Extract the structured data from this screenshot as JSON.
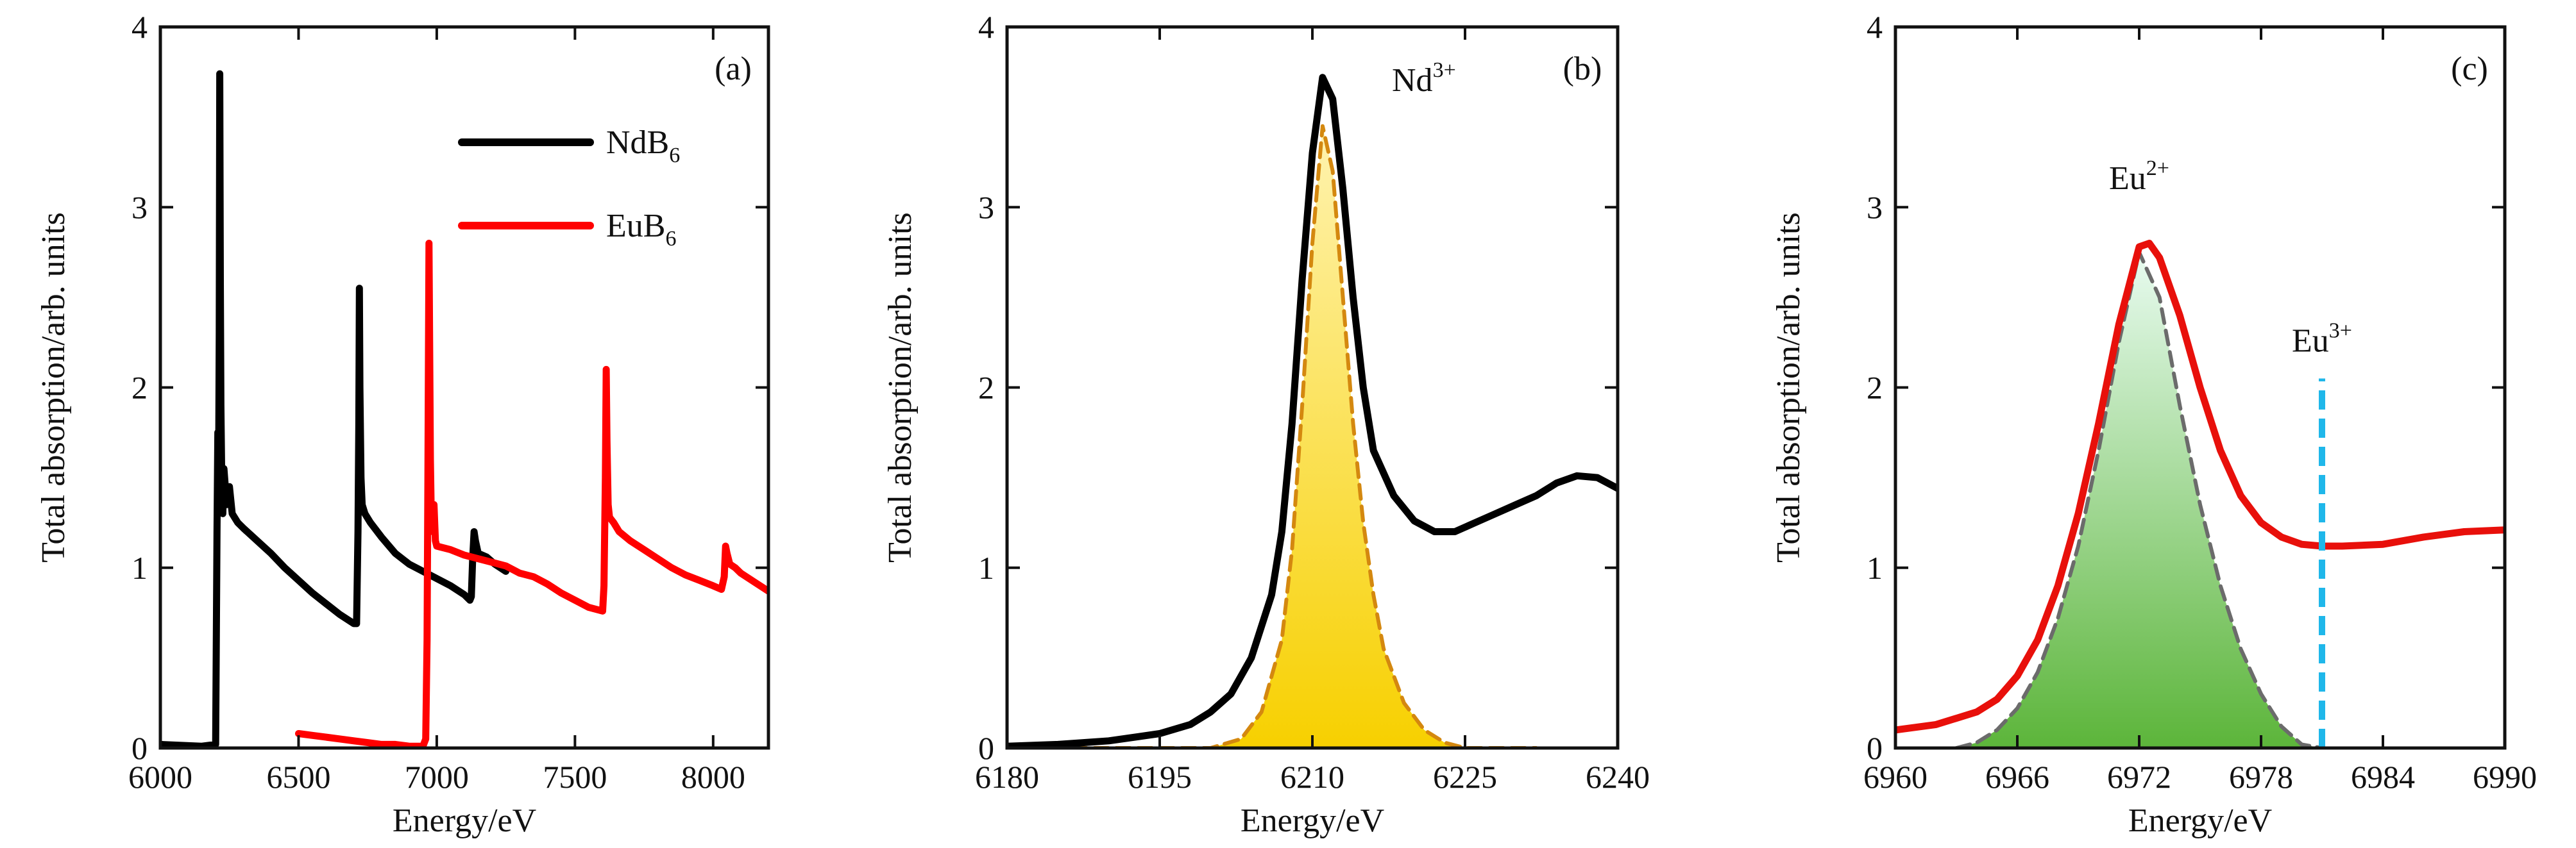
{
  "chart_data": [
    {
      "type": "line",
      "panel_label": "(a)",
      "xlabel": "Energy/eV",
      "ylabel": "Total absorption/arb. units",
      "xlim": [
        6000,
        8200
      ],
      "ylim": [
        0,
        4
      ],
      "xticks": [
        6000,
        6500,
        7000,
        7500,
        8000
      ],
      "yticks": [
        0,
        1,
        2,
        3,
        4
      ],
      "legend": {
        "placement": "top-right",
        "entries": [
          {
            "name_main": "NdB",
            "name_sub": "6",
            "color": "#000000"
          },
          {
            "name_main": "EuB",
            "name_sub": "6",
            "color": "#ff0000"
          }
        ]
      },
      "series": [
        {
          "name": "NdB6",
          "color": "#000000",
          "points": [
            [
              6000,
              0.02
            ],
            [
              6150,
              0.01
            ],
            [
              6200,
              0.02
            ],
            [
              6205,
              1.2
            ],
            [
              6208,
              1.75
            ],
            [
              6210,
              1.3
            ],
            [
              6213,
              2.3
            ],
            [
              6215,
              3.74
            ],
            [
              6217,
              2.6
            ],
            [
              6219,
              1.9
            ],
            [
              6222,
              1.5
            ],
            [
              6226,
              1.3
            ],
            [
              6230,
              1.55
            ],
            [
              6240,
              1.35
            ],
            [
              6250,
              1.45
            ],
            [
              6260,
              1.3
            ],
            [
              6280,
              1.25
            ],
            [
              6300,
              1.22
            ],
            [
              6350,
              1.15
            ],
            [
              6400,
              1.08
            ],
            [
              6450,
              1.0
            ],
            [
              6500,
              0.93
            ],
            [
              6550,
              0.86
            ],
            [
              6600,
              0.8
            ],
            [
              6650,
              0.74
            ],
            [
              6700,
              0.69
            ],
            [
              6710,
              0.69
            ],
            [
              6715,
              1.2
            ],
            [
              6718,
              1.8
            ],
            [
              6720,
              2.55
            ],
            [
              6722,
              2.0
            ],
            [
              6726,
              1.5
            ],
            [
              6730,
              1.35
            ],
            [
              6740,
              1.3
            ],
            [
              6760,
              1.25
            ],
            [
              6800,
              1.17
            ],
            [
              6850,
              1.08
            ],
            [
              6900,
              1.02
            ],
            [
              6950,
              0.98
            ],
            [
              7000,
              0.94
            ],
            [
              7050,
              0.9
            ],
            [
              7100,
              0.85
            ],
            [
              7120,
              0.82
            ],
            [
              7125,
              0.84
            ],
            [
              7130,
              1.05
            ],
            [
              7135,
              1.2
            ],
            [
              7140,
              1.15
            ],
            [
              7150,
              1.08
            ],
            [
              7180,
              1.06
            ],
            [
              7210,
              1.02
            ],
            [
              7250,
              0.98
            ]
          ]
        },
        {
          "name": "EuB6",
          "color": "#ff0000",
          "points": [
            [
              6500,
              0.08
            ],
            [
              6550,
              0.07
            ],
            [
              6600,
              0.06
            ],
            [
              6650,
              0.05
            ],
            [
              6700,
              0.04
            ],
            [
              6750,
              0.03
            ],
            [
              6800,
              0.02
            ],
            [
              6850,
              0.02
            ],
            [
              6900,
              0.01
            ],
            [
              6950,
              0.01
            ],
            [
              6960,
              0.05
            ],
            [
              6965,
              0.6
            ],
            [
              6968,
              1.5
            ],
            [
              6970,
              2.2
            ],
            [
              6972,
              2.8
            ],
            [
              6974,
              2.3
            ],
            [
              6977,
              1.6
            ],
            [
              6980,
              1.3
            ],
            [
              6985,
              1.2
            ],
            [
              6990,
              1.35
            ],
            [
              6995,
              1.15
            ],
            [
              7000,
              1.12
            ],
            [
              7050,
              1.1
            ],
            [
              7100,
              1.07
            ],
            [
              7150,
              1.05
            ],
            [
              7200,
              1.03
            ],
            [
              7250,
              1.01
            ],
            [
              7300,
              0.97
            ],
            [
              7350,
              0.95
            ],
            [
              7400,
              0.91
            ],
            [
              7450,
              0.86
            ],
            [
              7500,
              0.82
            ],
            [
              7550,
              0.78
            ],
            [
              7600,
              0.76
            ],
            [
              7605,
              0.9
            ],
            [
              7610,
              1.5
            ],
            [
              7613,
              2.1
            ],
            [
              7616,
              1.7
            ],
            [
              7620,
              1.35
            ],
            [
              7625,
              1.28
            ],
            [
              7640,
              1.25
            ],
            [
              7660,
              1.2
            ],
            [
              7700,
              1.15
            ],
            [
              7750,
              1.1
            ],
            [
              7800,
              1.05
            ],
            [
              7850,
              1.0
            ],
            [
              7900,
              0.96
            ],
            [
              7950,
              0.93
            ],
            [
              8000,
              0.9
            ],
            [
              8030,
              0.88
            ],
            [
              8040,
              0.95
            ],
            [
              8045,
              1.12
            ],
            [
              8050,
              1.08
            ],
            [
              8060,
              1.02
            ],
            [
              8080,
              1.0
            ],
            [
              8100,
              0.97
            ],
            [
              8150,
              0.92
            ],
            [
              8200,
              0.87
            ]
          ]
        }
      ]
    },
    {
      "type": "area",
      "panel_label": "(b)",
      "xlabel": "Energy/eV",
      "ylabel": "Total absorption/arb. units",
      "xlim": [
        6180,
        6240
      ],
      "ylim": [
        0,
        4
      ],
      "xticks": [
        6180,
        6195,
        6210,
        6225,
        6240
      ],
      "yticks": [
        0,
        1,
        2,
        3,
        4
      ],
      "annotation": {
        "main": "Nd",
        "sup": "3+"
      },
      "series": [
        {
          "name": "spectrum",
          "color": "#000000",
          "points": [
            [
              6180,
              0.01
            ],
            [
              6185,
              0.02
            ],
            [
              6190,
              0.04
            ],
            [
              6195,
              0.08
            ],
            [
              6198,
              0.13
            ],
            [
              6200,
              0.2
            ],
            [
              6202,
              0.3
            ],
            [
              6204,
              0.5
            ],
            [
              6206,
              0.85
            ],
            [
              6207,
              1.2
            ],
            [
              6208,
              1.8
            ],
            [
              6209,
              2.6
            ],
            [
              6210,
              3.3
            ],
            [
              6211,
              3.72
            ],
            [
              6212,
              3.6
            ],
            [
              6213,
              3.1
            ],
            [
              6214,
              2.5
            ],
            [
              6215,
              2.0
            ],
            [
              6216,
              1.65
            ],
            [
              6218,
              1.4
            ],
            [
              6220,
              1.26
            ],
            [
              6222,
              1.2
            ],
            [
              6224,
              1.2
            ],
            [
              6226,
              1.25
            ],
            [
              6228,
              1.3
            ],
            [
              6230,
              1.35
            ],
            [
              6232,
              1.4
            ],
            [
              6234,
              1.47
            ],
            [
              6236,
              1.51
            ],
            [
              6238,
              1.5
            ],
            [
              6240,
              1.44
            ]
          ]
        },
        {
          "name": "Nd3+ component",
          "color": "#d4880f",
          "dashed": true,
          "fill_top": "#fff3b0",
          "fill_bottom": "#f7d000",
          "points": [
            [
              6180,
              0.0
            ],
            [
              6200,
              0.0
            ],
            [
              6203,
              0.05
            ],
            [
              6205,
              0.2
            ],
            [
              6207,
              0.6
            ],
            [
              6208,
              1.1
            ],
            [
              6209,
              1.9
            ],
            [
              6210,
              2.8
            ],
            [
              6211,
              3.45
            ],
            [
              6212,
              3.2
            ],
            [
              6213,
              2.5
            ],
            [
              6214,
              1.8
            ],
            [
              6215,
              1.25
            ],
            [
              6216,
              0.85
            ],
            [
              6217,
              0.55
            ],
            [
              6219,
              0.25
            ],
            [
              6221,
              0.1
            ],
            [
              6223,
              0.03
            ],
            [
              6225,
              0.0
            ],
            [
              6232,
              0.0
            ]
          ]
        }
      ]
    },
    {
      "type": "area",
      "panel_label": "(c)",
      "xlabel": "Energy/eV",
      "ylabel": "Total absorption/arb. units",
      "xlim": [
        6960,
        6990
      ],
      "ylim": [
        0,
        4
      ],
      "xticks": [
        6960,
        6966,
        6972,
        6978,
        6984,
        6990
      ],
      "yticks": [
        0,
        1,
        2,
        3,
        4
      ],
      "annotations": [
        {
          "main": "Eu",
          "sup": "2+",
          "at": [
            6972,
            3.1
          ]
        },
        {
          "main": "Eu",
          "sup": "3+",
          "at": [
            6981,
            2.2
          ]
        }
      ],
      "vline": {
        "x": 6981,
        "ymax": 2.05,
        "color": "#1fb7ea"
      },
      "series": [
        {
          "name": "spectrum",
          "color": "#e8100b",
          "points": [
            [
              6960,
              0.1
            ],
            [
              6962,
              0.13
            ],
            [
              6964,
              0.2
            ],
            [
              6965,
              0.27
            ],
            [
              6966,
              0.4
            ],
            [
              6967,
              0.6
            ],
            [
              6968,
              0.9
            ],
            [
              6969,
              1.3
            ],
            [
              6970,
              1.8
            ],
            [
              6971,
              2.35
            ],
            [
              6972,
              2.78
            ],
            [
              6972.5,
              2.8
            ],
            [
              6973,
              2.72
            ],
            [
              6974,
              2.4
            ],
            [
              6975,
              2.0
            ],
            [
              6976,
              1.65
            ],
            [
              6977,
              1.4
            ],
            [
              6978,
              1.25
            ],
            [
              6979,
              1.17
            ],
            [
              6980,
              1.13
            ],
            [
              6981,
              1.12
            ],
            [
              6982,
              1.12
            ],
            [
              6984,
              1.13
            ],
            [
              6986,
              1.17
            ],
            [
              6988,
              1.2
            ],
            [
              6990,
              1.21
            ]
          ]
        },
        {
          "name": "Eu2+ component",
          "color": "#6b6b6b",
          "dashed": true,
          "fill_top": "#e8fbf0",
          "fill_bottom": "#5cb53a",
          "points": [
            [
              6963,
              0.0
            ],
            [
              6964,
              0.03
            ],
            [
              6965,
              0.1
            ],
            [
              6966,
              0.22
            ],
            [
              6967,
              0.42
            ],
            [
              6968,
              0.72
            ],
            [
              6969,
              1.12
            ],
            [
              6970,
              1.65
            ],
            [
              6971,
              2.25
            ],
            [
              6972,
              2.75
            ],
            [
              6973,
              2.5
            ],
            [
              6974,
              1.9
            ],
            [
              6975,
              1.35
            ],
            [
              6976,
              0.9
            ],
            [
              6977,
              0.55
            ],
            [
              6978,
              0.3
            ],
            [
              6979,
              0.12
            ],
            [
              6980,
              0.02
            ],
            [
              6981,
              0.0
            ]
          ]
        }
      ]
    }
  ]
}
